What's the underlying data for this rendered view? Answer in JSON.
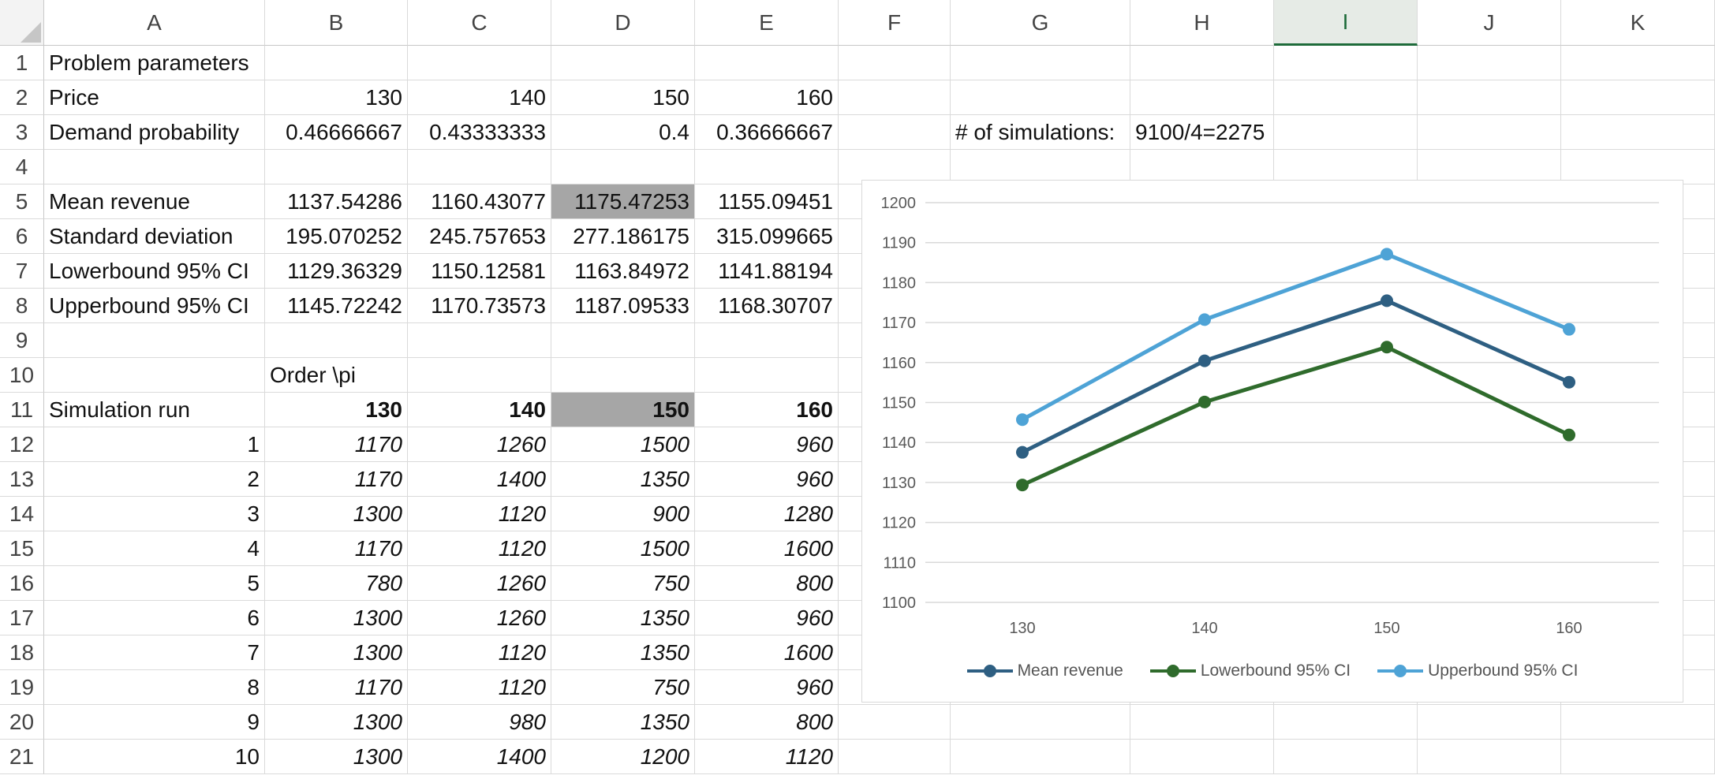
{
  "columns": [
    "A",
    "B",
    "C",
    "D",
    "E",
    "F",
    "G",
    "H",
    "I",
    "J",
    "K"
  ],
  "selected_column": "I",
  "rows": {
    "1": {
      "A": "Problem parameters"
    },
    "2": {
      "A": "Price",
      "B": "130",
      "C": "140",
      "D": "150",
      "E": "160"
    },
    "3": {
      "A": "Demand probability",
      "B": "0.46666667",
      "C": "0.43333333",
      "D": "0.4",
      "E": "0.36666667",
      "G": "# of simulations:",
      "H": "9100/4=2275"
    },
    "4": {},
    "5": {
      "A": "Mean revenue",
      "B": "1137.54286",
      "C": "1160.43077",
      "D": "1175.47253",
      "E": "1155.09451"
    },
    "6": {
      "A": "Standard deviation",
      "B": "195.070252",
      "C": "245.757653",
      "D": "277.186175",
      "E": "315.099665"
    },
    "7": {
      "A": "Lowerbound 95% CI",
      "B": "1129.36329",
      "C": "1150.12581",
      "D": "1163.84972",
      "E": "1141.88194"
    },
    "8": {
      "A": "Upperbound 95% CI",
      "B": "1145.72242",
      "C": "1170.73573",
      "D": "1187.09533",
      "E": "1168.30707"
    },
    "9": {},
    "10": {
      "B": "Order \\pi"
    },
    "11": {
      "A": "Simulation run",
      "B": "130",
      "C": "140",
      "D": "150",
      "E": "160"
    },
    "12": {
      "A": "1",
      "B": "1170",
      "C": "1260",
      "D": "1500",
      "E": "960"
    },
    "13": {
      "A": "2",
      "B": "1170",
      "C": "1400",
      "D": "1350",
      "E": "960"
    },
    "14": {
      "A": "3",
      "B": "1300",
      "C": "1120",
      "D": "900",
      "E": "1280"
    },
    "15": {
      "A": "4",
      "B": "1170",
      "C": "1120",
      "D": "1500",
      "E": "1600"
    },
    "16": {
      "A": "5",
      "B": "780",
      "C": "1260",
      "D": "750",
      "E": "800"
    },
    "17": {
      "A": "6",
      "B": "1300",
      "C": "1260",
      "D": "1350",
      "E": "960"
    },
    "18": {
      "A": "7",
      "B": "1300",
      "C": "1120",
      "D": "1350",
      "E": "1600"
    },
    "19": {
      "A": "8",
      "B": "1170",
      "C": "1120",
      "D": "750",
      "E": "960"
    },
    "20": {
      "A": "9",
      "B": "1300",
      "C": "980",
      "D": "1350",
      "E": "800"
    },
    "21": {
      "A": "10",
      "B": "1300",
      "C": "1400",
      "D": "1200",
      "E": "1120"
    }
  },
  "colors": {
    "shaded_cell": "#a6a6a6",
    "selected_header": "#1e6b3a",
    "grid": "#dadada",
    "mean_series": "#2e5f82",
    "lower_series": "#2f6b2c",
    "upper_series": "#4ea3d6"
  },
  "chart_data": {
    "type": "line",
    "categories": [
      "130",
      "140",
      "150",
      "160"
    ],
    "series": [
      {
        "name": "Mean revenue",
        "values": [
          1137.54,
          1160.43,
          1175.47,
          1155.09
        ],
        "color": "#2e5f82"
      },
      {
        "name": "Lowerbound 95% CI",
        "values": [
          1129.36,
          1150.13,
          1163.85,
          1141.88
        ],
        "color": "#2f6b2c"
      },
      {
        "name": "Upperbound 95% CI",
        "values": [
          1145.72,
          1170.74,
          1187.1,
          1168.31
        ],
        "color": "#4ea3d6"
      }
    ],
    "ylim": [
      1100,
      1200
    ],
    "yticks": [
      "1100",
      "1110",
      "1120",
      "1130",
      "1140",
      "1150",
      "1160",
      "1170",
      "1180",
      "1190",
      "1200"
    ],
    "grid": true,
    "legend": "bottom"
  }
}
